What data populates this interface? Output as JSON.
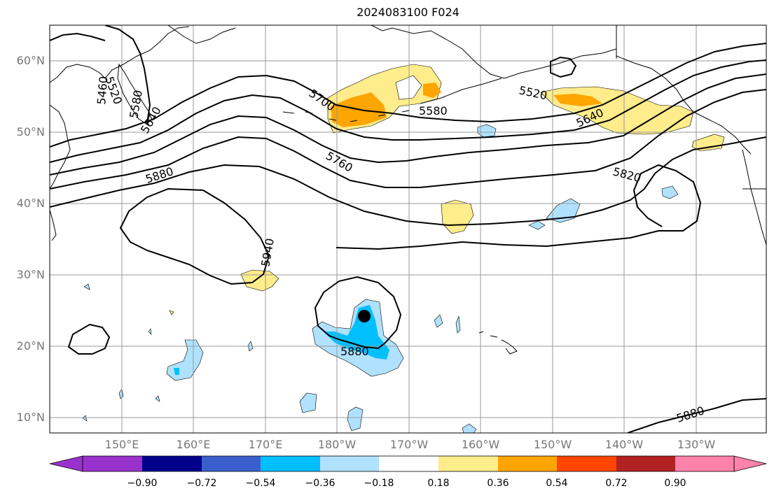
{
  "title": "2024083100 F024",
  "lat_labels": [
    "60°N",
    "50°N",
    "40°N",
    "30°N",
    "20°N",
    "10°N"
  ],
  "lon_labels": [
    "150°E",
    "160°E",
    "170°E",
    "180°W",
    "170°W",
    "160°W",
    "150°W",
    "140°W",
    "130°W"
  ],
  "colorbar": {
    "ticks": [
      "−0.90",
      "−0.72",
      "−0.54",
      "−0.36",
      "−0.18",
      "0.18",
      "0.36",
      "0.54",
      "0.72",
      "0.90"
    ],
    "colors": [
      "#9932CC",
      "#00008B",
      "#3A5FCD",
      "#00BFFF",
      "#B0E2FF",
      "#FFFFFF",
      "#FFEC8B",
      "#FFA500",
      "#FF4500",
      "#B22222",
      "#FF82AB"
    ]
  },
  "contour_labels": [
    "5520",
    "5460",
    "5580",
    "5640",
    "5700",
    "5580",
    "5520",
    "5640",
    "5760",
    "5880",
    "5820",
    "5940",
    "5880",
    "5880"
  ],
  "marker": "storm-center"
}
